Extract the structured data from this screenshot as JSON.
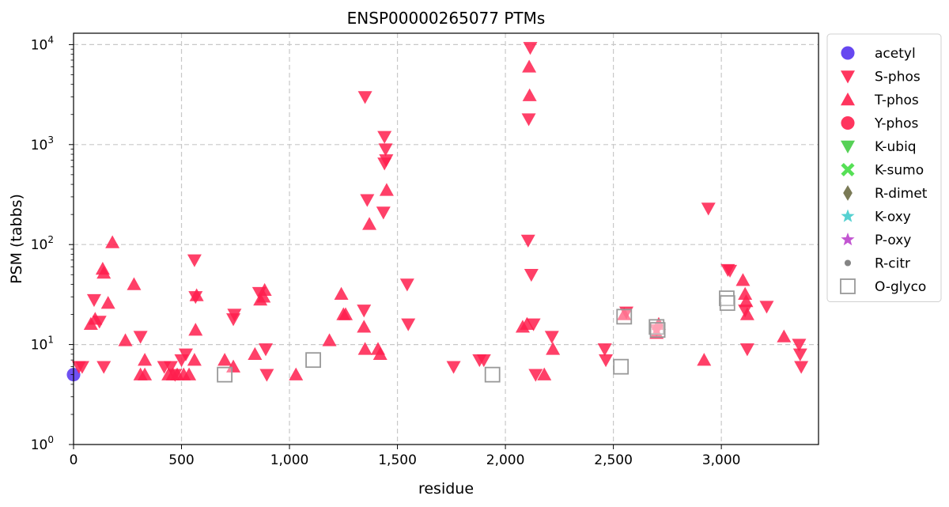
{
  "chart_data": {
    "type": "scatter",
    "title": "ENSP00000265077 PTMs",
    "xlabel": "residue",
    "ylabel": "PSM (tabbs)",
    "xlim": [
      0,
      3450
    ],
    "ylim": [
      1,
      13000
    ],
    "yscale": "log",
    "grid": true,
    "legend_position": "outside-right",
    "x_ticks": [
      {
        "value": 0,
        "label": "0"
      },
      {
        "value": 500,
        "label": "500"
      },
      {
        "value": 1000,
        "label": "1,000"
      },
      {
        "value": 1500,
        "label": "1,500"
      },
      {
        "value": 2000,
        "label": "2,000"
      },
      {
        "value": 2500,
        "label": "2,500"
      },
      {
        "value": 3000,
        "label": "3,000"
      }
    ],
    "y_ticks": [
      {
        "value": 1,
        "base": "10",
        "exp": "0"
      },
      {
        "value": 10,
        "base": "10",
        "exp": "1"
      },
      {
        "value": 100,
        "base": "10",
        "exp": "2"
      },
      {
        "value": 1000,
        "base": "10",
        "exp": "3"
      },
      {
        "value": 10000,
        "base": "10",
        "exp": "4"
      }
    ],
    "series": [
      {
        "name": "acetyl",
        "marker": "circle",
        "color": "#5533ee",
        "points": [
          [
            0,
            5
          ]
        ]
      },
      {
        "name": "S-phos",
        "marker": "triangle-down",
        "color": "#ff1f4d",
        "points": [
          [
            25,
            6
          ],
          [
            40,
            6
          ],
          [
            95,
            28
          ],
          [
            120,
            17
          ],
          [
            140,
            6
          ],
          [
            310,
            12
          ],
          [
            420,
            6
          ],
          [
            450,
            6
          ],
          [
            470,
            5
          ],
          [
            500,
            7
          ],
          [
            520,
            8
          ],
          [
            560,
            70
          ],
          [
            565,
            30
          ],
          [
            740,
            18
          ],
          [
            745,
            20
          ],
          [
            860,
            33
          ],
          [
            890,
            9
          ],
          [
            895,
            5
          ],
          [
            1350,
            3000
          ],
          [
            1360,
            280
          ],
          [
            1345,
            22
          ],
          [
            1440,
            1200
          ],
          [
            1445,
            900
          ],
          [
            1440,
            650
          ],
          [
            1448,
            700
          ],
          [
            1435,
            210
          ],
          [
            1545,
            40
          ],
          [
            1550,
            16
          ],
          [
            1760,
            6
          ],
          [
            1900,
            7
          ],
          [
            1880,
            7
          ],
          [
            2105,
            110
          ],
          [
            2115,
            9300
          ],
          [
            2108,
            1800
          ],
          [
            2130,
            16
          ],
          [
            2120,
            50
          ],
          [
            2140,
            5
          ],
          [
            2215,
            12
          ],
          [
            2460,
            9
          ],
          [
            2465,
            7
          ],
          [
            2560,
            21
          ],
          [
            2700,
            14
          ],
          [
            2940,
            230
          ],
          [
            3030,
            56
          ],
          [
            3040,
            55
          ],
          [
            3110,
            22
          ],
          [
            3120,
            9
          ],
          [
            3210,
            24
          ],
          [
            3360,
            10
          ],
          [
            3365,
            8
          ],
          [
            3370,
            6
          ]
        ]
      },
      {
        "name": "T-phos",
        "marker": "triangle-up",
        "color": "#ff1f4d",
        "points": [
          [
            80,
            16
          ],
          [
            100,
            18
          ],
          [
            135,
            57
          ],
          [
            140,
            52
          ],
          [
            160,
            26
          ],
          [
            180,
            105
          ],
          [
            240,
            11
          ],
          [
            280,
            40
          ],
          [
            310,
            5
          ],
          [
            330,
            7
          ],
          [
            330,
            5
          ],
          [
            440,
            5
          ],
          [
            460,
            5
          ],
          [
            480,
            5
          ],
          [
            510,
            5
          ],
          [
            535,
            5
          ],
          [
            560,
            7
          ],
          [
            565,
            14
          ],
          [
            570,
            31
          ],
          [
            700,
            7
          ],
          [
            740,
            6
          ],
          [
            840,
            8
          ],
          [
            865,
            28
          ],
          [
            880,
            30
          ],
          [
            885,
            35
          ],
          [
            1030,
            5
          ],
          [
            1185,
            11
          ],
          [
            1240,
            32
          ],
          [
            1250,
            20
          ],
          [
            1260,
            20
          ],
          [
            1345,
            15
          ],
          [
            1350,
            9
          ],
          [
            1370,
            160
          ],
          [
            1410,
            9
          ],
          [
            1420,
            8
          ],
          [
            1450,
            350
          ],
          [
            2080,
            15
          ],
          [
            2100,
            16
          ],
          [
            2110,
            6000
          ],
          [
            2112,
            3100
          ],
          [
            2180,
            5
          ],
          [
            2220,
            9
          ],
          [
            2550,
            20
          ],
          [
            2700,
            13
          ],
          [
            2710,
            16
          ],
          [
            2920,
            7
          ],
          [
            3100,
            44
          ],
          [
            3110,
            32
          ],
          [
            3115,
            27
          ],
          [
            3120,
            20
          ],
          [
            3290,
            12
          ]
        ]
      },
      {
        "name": "Y-phos",
        "marker": "circle",
        "color": "#ff1f4d",
        "points": []
      },
      {
        "name": "K-ubiq",
        "marker": "triangle-down",
        "color": "#44cc44",
        "points": []
      },
      {
        "name": "K-sumo",
        "marker": "x",
        "color": "#44dd44",
        "points": []
      },
      {
        "name": "R-dimet",
        "marker": "diamond",
        "color": "#6b6b44",
        "points": []
      },
      {
        "name": "K-oxy",
        "marker": "star",
        "color": "#44cccc",
        "points": []
      },
      {
        "name": "P-oxy",
        "marker": "star",
        "color": "#bb44cc",
        "points": []
      },
      {
        "name": "R-citr",
        "marker": "dot",
        "color": "#777777",
        "points": []
      },
      {
        "name": "O-glyco",
        "marker": "square-open",
        "color": "#999999",
        "points": [
          [
            700,
            5
          ],
          [
            1110,
            7
          ],
          [
            1940,
            5
          ],
          [
            2535,
            6
          ],
          [
            2550,
            19
          ],
          [
            2700,
            15
          ],
          [
            2705,
            14
          ],
          [
            3025,
            29
          ],
          [
            3028,
            26
          ]
        ]
      }
    ]
  }
}
